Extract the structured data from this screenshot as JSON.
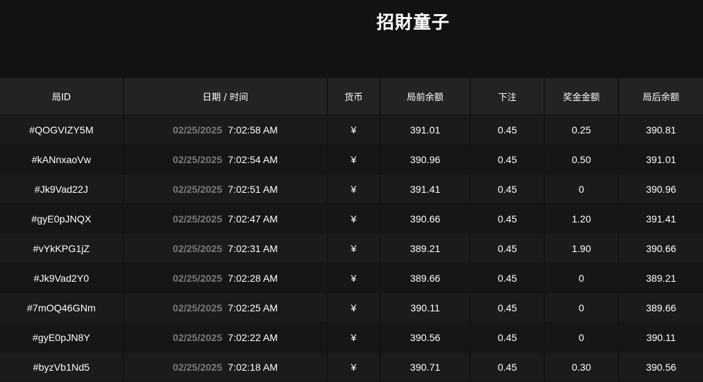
{
  "title": "招財童子",
  "headers": [
    "局ID",
    "日期 / 时间",
    "货币",
    "局前余额",
    "下注",
    "奖金金额",
    "局后余额"
  ],
  "rows": [
    {
      "id": "#QOGVIZY5M",
      "date": "02/25/2025",
      "time": "7:02:58 AM",
      "currency": "¥",
      "before": "391.01",
      "bet": "0.45",
      "win": "0.25",
      "after": "390.81"
    },
    {
      "id": "#kANnxaoVw",
      "date": "02/25/2025",
      "time": "7:02:54 AM",
      "currency": "¥",
      "before": "390.96",
      "bet": "0.45",
      "win": "0.50",
      "after": "391.01"
    },
    {
      "id": "#Jk9Vad22J",
      "date": "02/25/2025",
      "time": "7:02:51 AM",
      "currency": "¥",
      "before": "391.41",
      "bet": "0.45",
      "win": "0",
      "after": "390.96"
    },
    {
      "id": "#gyE0pJNQX",
      "date": "02/25/2025",
      "time": "7:02:47 AM",
      "currency": "¥",
      "before": "390.66",
      "bet": "0.45",
      "win": "1.20",
      "after": "391.41"
    },
    {
      "id": "#vYkKPG1jZ",
      "date": "02/25/2025",
      "time": "7:02:31 AM",
      "currency": "¥",
      "before": "389.21",
      "bet": "0.45",
      "win": "1.90",
      "after": "390.66"
    },
    {
      "id": "#Jk9Vad2Y0",
      "date": "02/25/2025",
      "time": "7:02:28 AM",
      "currency": "¥",
      "before": "389.66",
      "bet": "0.45",
      "win": "0",
      "after": "389.21"
    },
    {
      "id": "#7mOQ46GNm",
      "date": "02/25/2025",
      "time": "7:02:25 AM",
      "currency": "¥",
      "before": "390.11",
      "bet": "0.45",
      "win": "0",
      "after": "389.66"
    },
    {
      "id": "#gyE0pJN8Y",
      "date": "02/25/2025",
      "time": "7:02:22 AM",
      "currency": "¥",
      "before": "390.56",
      "bet": "0.45",
      "win": "0",
      "after": "390.11"
    },
    {
      "id": "#byzVb1Nd5",
      "date": "02/25/2025",
      "time": "7:02:18 AM",
      "currency": "¥",
      "before": "390.71",
      "bet": "0.45",
      "win": "0.30",
      "after": "390.56"
    }
  ]
}
